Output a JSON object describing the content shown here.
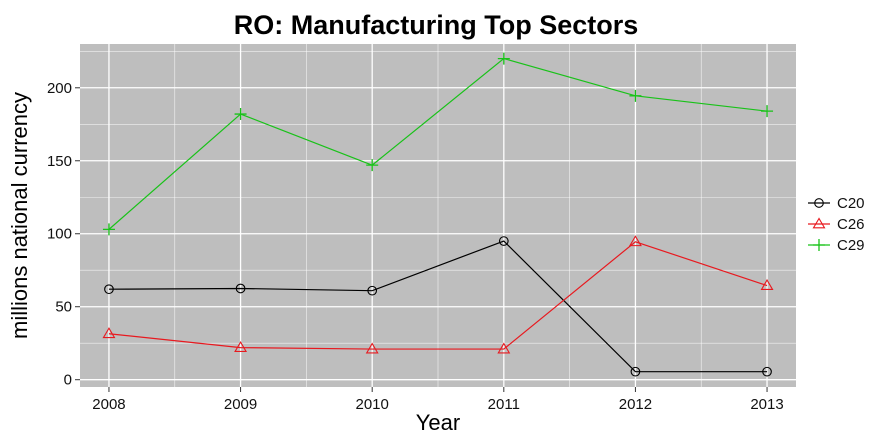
{
  "chart_data": {
    "type": "line",
    "title": "RO: Manufacturing Top Sectors",
    "xlabel": "Year",
    "ylabel": "millions national currency",
    "x": [
      2008,
      2009,
      2010,
      2011,
      2012,
      2013
    ],
    "xticks": [
      "2008",
      "2009",
      "2010",
      "2011",
      "2012",
      "2013"
    ],
    "yticks": [
      0,
      50,
      100,
      150,
      200
    ],
    "ylim": [
      -5,
      230
    ],
    "grid": true,
    "legend_position": "right",
    "panel_background": "#bebebe",
    "grid_color": "#ffffff",
    "series": [
      {
        "name": "C20",
        "marker": "circle",
        "color": "#000000",
        "values": [
          62,
          62.5,
          61,
          95,
          5.5,
          5.5
        ]
      },
      {
        "name": "C26",
        "marker": "triangle",
        "color": "#e8191f",
        "values": [
          31.5,
          22,
          21,
          21,
          94.5,
          64.5
        ]
      },
      {
        "name": "C29",
        "marker": "plus",
        "color": "#19c219",
        "values": [
          103,
          182,
          147,
          220,
          194.5,
          184
        ]
      }
    ]
  }
}
